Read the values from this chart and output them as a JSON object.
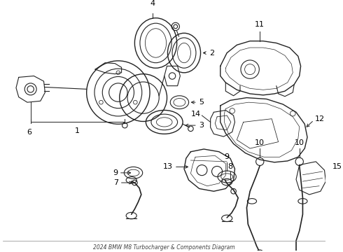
{
  "title": "2024 BMW M8 Turbocharger & Components Diagram",
  "background_color": "#ffffff",
  "line_color": "#222222",
  "text_color": "#000000",
  "figsize": [
    4.9,
    3.6
  ],
  "dpi": 100
}
